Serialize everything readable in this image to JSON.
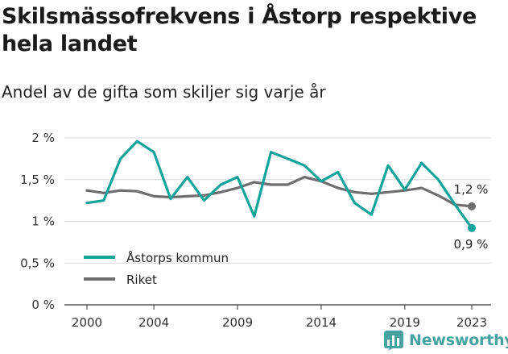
{
  "title": "Skilsmässofrekvens i Åstorp respektive hela landet",
  "subtitle": "Andel av de gifta som skiljer sig varje år",
  "brand": {
    "name": "Newsworthy",
    "icon": "newsworthy-logo-icon",
    "color": "#47a3a0"
  },
  "chart_data": {
    "type": "line",
    "x": [
      2000,
      2001,
      2002,
      2003,
      2004,
      2005,
      2006,
      2007,
      2008,
      2009,
      2010,
      2011,
      2012,
      2013,
      2014,
      2015,
      2016,
      2017,
      2018,
      2019,
      2020,
      2021,
      2022,
      2023
    ],
    "x_ticks": [
      2000,
      2004,
      2009,
      2014,
      2019,
      2023
    ],
    "x_tick_labels": [
      "2000",
      "2004",
      "2009",
      "2014",
      "2019",
      "2023"
    ],
    "y_ticks": [
      0,
      0.5,
      1,
      1.5,
      2
    ],
    "y_tick_labels": [
      "0 %",
      "0,5 %",
      "1 %",
      "1,5 %",
      "2 %"
    ],
    "ylim": [
      0,
      2
    ],
    "xlim": [
      2000,
      2023
    ],
    "series": [
      {
        "name": "Åstorps kommun",
        "color": "#11a39a",
        "values": [
          1.22,
          1.25,
          1.75,
          1.96,
          1.83,
          1.27,
          1.53,
          1.25,
          1.44,
          1.53,
          1.06,
          1.83,
          1.75,
          1.67,
          1.48,
          1.59,
          1.22,
          1.08,
          1.67,
          1.38,
          1.7,
          1.5,
          1.2,
          0.92
        ],
        "end_label": "0,9 %"
      },
      {
        "name": "Riket",
        "color": "#706d71",
        "values": [
          1.37,
          1.34,
          1.37,
          1.36,
          1.3,
          1.29,
          1.3,
          1.31,
          1.35,
          1.4,
          1.47,
          1.44,
          1.44,
          1.53,
          1.48,
          1.4,
          1.35,
          1.33,
          1.35,
          1.37,
          1.4,
          1.31,
          1.2,
          1.18
        ],
        "end_label": "1,2 %"
      }
    ],
    "legend": {
      "position": "bottom-left"
    },
    "grid": "horizontal"
  }
}
